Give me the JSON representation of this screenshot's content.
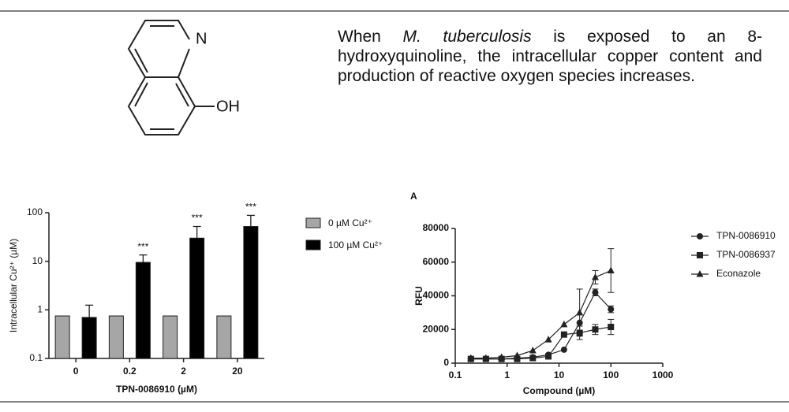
{
  "molecule": {
    "atoms": [
      "N",
      "OH"
    ]
  },
  "text": {
    "parts": [
      "When",
      "M. tuberculosis",
      "is exposed to an 8-hydroxyquinoline, the intracellular copper content and production of reactive oxygen species increases."
    ]
  },
  "chart_data": [
    {
      "type": "bar",
      "y_label": "Intracellular Cu²⁺ (µM)",
      "x_label": "TPN-0086910 (µM)",
      "categories": [
        "0",
        "0.2",
        "2",
        "20"
      ],
      "y_log": true,
      "ylim": [
        0.1,
        100
      ],
      "yticks": [
        0.1,
        1,
        10,
        100
      ],
      "legend": "right",
      "series": [
        {
          "name": "0 µM Cu²⁺",
          "color": "#a6a6a6",
          "values": [
            0.75,
            0.75,
            0.75,
            0.75
          ]
        },
        {
          "name": "100 µM Cu²⁺",
          "color": "#000000",
          "values": [
            0.7,
            9.5,
            30,
            52
          ],
          "errors": [
            0.55,
            4,
            22,
            36
          ],
          "significance": [
            null,
            "***",
            "***",
            "***"
          ]
        }
      ]
    },
    {
      "type": "line",
      "title": "A",
      "y_label": "RFU",
      "x_label": "Compound (µM)",
      "x_log": true,
      "xlim": [
        0.1,
        1000
      ],
      "xticks": [
        0.1,
        1,
        10,
        100,
        1000
      ],
      "ylim": [
        0,
        80000
      ],
      "yticks": [
        0,
        20000,
        40000,
        60000,
        80000
      ],
      "legend": "right",
      "x": [
        0.2,
        0.39,
        0.78,
        1.56,
        3.125,
        6.25,
        12.5,
        25,
        50,
        100
      ],
      "series": [
        {
          "name": "TPN-0086910",
          "color": "#222222",
          "marker": "circle",
          "values": [
            2500,
            2500,
            2500,
            3000,
            3500,
            5000,
            8000,
            24000,
            42000,
            32000
          ],
          "errors": [
            null,
            null,
            null,
            null,
            null,
            null,
            null,
            null,
            2000,
            2000
          ]
        },
        {
          "name": "TPN-0086937",
          "color": "#222222",
          "marker": "square",
          "values": [
            2500,
            2500,
            2500,
            2500,
            3000,
            4000,
            17000,
            18000,
            20000,
            21500
          ],
          "errors": [
            null,
            null,
            null,
            null,
            null,
            null,
            null,
            4000,
            3000,
            4500
          ]
        },
        {
          "name": "Econazole",
          "color": "#222222",
          "marker": "triangle",
          "values": [
            3000,
            3000,
            3500,
            4500,
            7500,
            14000,
            23000,
            30000,
            51000,
            55000
          ],
          "errors": [
            null,
            null,
            null,
            null,
            null,
            null,
            null,
            14000,
            4000,
            13000
          ]
        }
      ]
    }
  ]
}
